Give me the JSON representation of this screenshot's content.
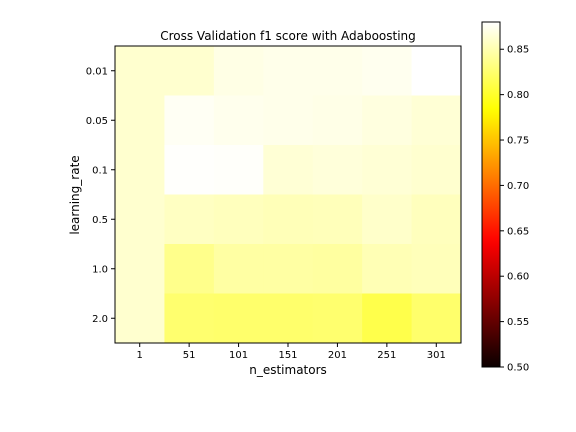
{
  "chart_data": {
    "type": "heatmap",
    "title": "Cross Validation f1 score with Adaboosting",
    "xlabel": "n_estimators",
    "ylabel": "learning_rate",
    "x_categories": [
      "1",
      "51",
      "101",
      "151",
      "201",
      "251",
      "301"
    ],
    "y_categories": [
      "0.01",
      "0.05",
      "0.1",
      "0.5",
      "1.0",
      "2.0"
    ],
    "values": [
      [
        0.862,
        0.862,
        0.87,
        0.872,
        0.872,
        0.874,
        0.88
      ],
      [
        0.862,
        0.876,
        0.873,
        0.872,
        0.871,
        0.868,
        0.864
      ],
      [
        0.862,
        0.879,
        0.878,
        0.864,
        0.866,
        0.864,
        0.862
      ],
      [
        0.862,
        0.857,
        0.855,
        0.853,
        0.854,
        0.86,
        0.855
      ],
      [
        0.862,
        0.836,
        0.845,
        0.845,
        0.844,
        0.852,
        0.854
      ],
      [
        0.862,
        0.825,
        0.824,
        0.824,
        0.825,
        0.812,
        0.824
      ]
    ],
    "colormap": "hot",
    "vmin": 0.5,
    "vmax": 0.88,
    "colorbar_ticks": [
      "0.50",
      "0.55",
      "0.60",
      "0.65",
      "0.70",
      "0.75",
      "0.80",
      "0.85"
    ]
  }
}
